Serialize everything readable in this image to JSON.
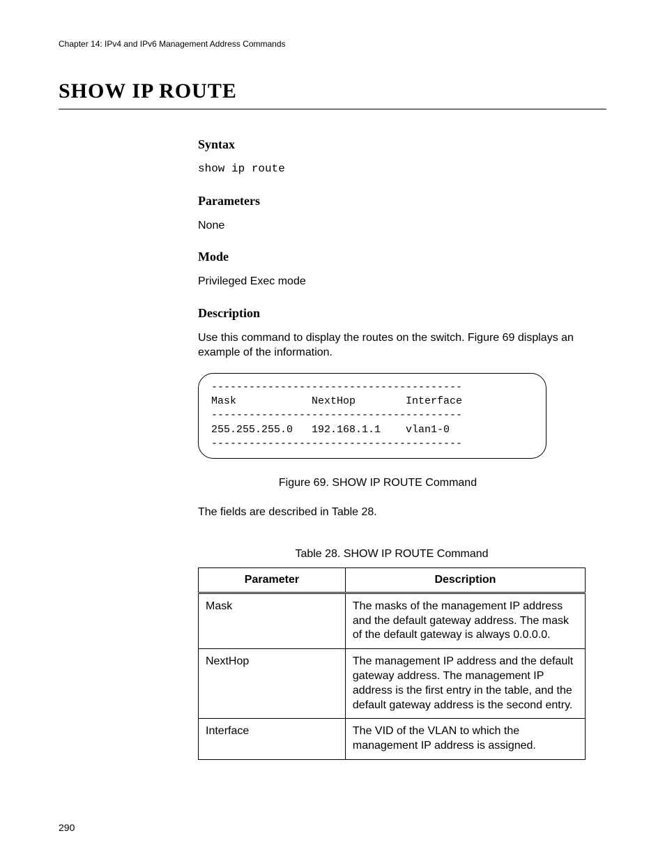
{
  "chapter_header": "Chapter 14: IPv4 and IPv6 Management Address Commands",
  "main_title": "SHOW IP ROUTE",
  "sections": {
    "syntax": {
      "heading": "Syntax",
      "command": "show ip route"
    },
    "parameters": {
      "heading": "Parameters",
      "text": "None"
    },
    "mode": {
      "heading": "Mode",
      "text": "Privileged Exec mode"
    },
    "description": {
      "heading": "Description",
      "text": "Use this command to display the routes on the switch. Figure 69 displays an example of the information."
    }
  },
  "figure": {
    "lines": [
      "----------------------------------------",
      "Mask            NextHop        Interface",
      "----------------------------------------",
      "255.255.255.0   192.168.1.1    vlan1-0",
      "----------------------------------------"
    ],
    "caption": "Figure 69. SHOW IP ROUTE Command"
  },
  "post_figure_text": "The fields are described in Table 28.",
  "table": {
    "caption": "Table 28. SHOW IP ROUTE Command",
    "headers": [
      "Parameter",
      "Description"
    ],
    "rows": [
      [
        "Mask",
        "The masks of the management IP address and the default gateway address. The mask of the default gateway is always 0.0.0.0."
      ],
      [
        "NextHop",
        "The management IP address and the default gateway address. The management IP address is the first entry in the table, and the default gateway address is the second entry."
      ],
      [
        "Interface",
        "The VID of the VLAN to which the management IP address is assigned."
      ]
    ]
  },
  "page_number": "290",
  "colors": {
    "text": "#000000",
    "background": "#ffffff",
    "border": "#000000"
  }
}
